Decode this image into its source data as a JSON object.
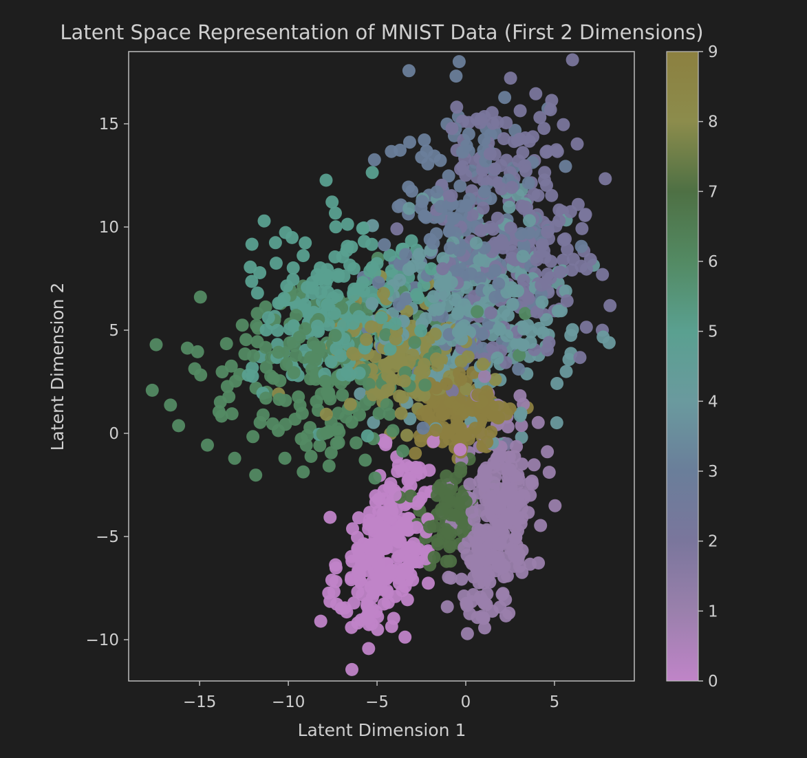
{
  "chart_data": {
    "type": "scatter",
    "title": "Latent Space Representation of MNIST Data (First 2 Dimensions)",
    "xlabel": "Latent Dimension 1",
    "ylabel": "Latent Dimension 2",
    "xlim": [
      -19,
      9.5
    ],
    "ylim": [
      -12,
      18.5
    ],
    "xticks": [
      -15,
      -10,
      -5,
      0,
      5
    ],
    "yticks": [
      -10,
      -5,
      0,
      5,
      10,
      15
    ],
    "grid": false,
    "colorbar": {
      "min": 0,
      "max": 9,
      "ticks": [
        0,
        1,
        2,
        3,
        4,
        5,
        6,
        7,
        8,
        9
      ],
      "colors": [
        "#c084c8",
        "#9a80ac",
        "#7a769c",
        "#6a7e9a",
        "#6a9a9e",
        "#5aa090",
        "#538a63",
        "#4e7044",
        "#8c8c4c",
        "#8c8040"
      ]
    },
    "clusters": [
      {
        "label": 0,
        "cx": -4.5,
        "cy": -5.5,
        "sx": 1.3,
        "sy": 2.2,
        "rho": 0.45,
        "n": 250
      },
      {
        "label": 1,
        "cx": 1.8,
        "cy": -4.0,
        "sx": 1.1,
        "sy": 2.6,
        "rho": 0.35,
        "n": 280
      },
      {
        "label": 2,
        "cx": 2.8,
        "cy": 10.0,
        "sx": 2.3,
        "sy": 3.2,
        "rho": 0.0,
        "n": 240
      },
      {
        "label": 3,
        "cx": 0.0,
        "cy": 9.5,
        "sx": 2.5,
        "sy": 3.3,
        "rho": 0.0,
        "n": 200
      },
      {
        "label": 4,
        "cx": 0.5,
        "cy": 6.0,
        "sx": 2.6,
        "sy": 2.4,
        "rho": 0.0,
        "n": 230
      },
      {
        "label": 5,
        "cx": -7.0,
        "cy": 6.0,
        "sx": 2.6,
        "sy": 2.0,
        "rho": 0.0,
        "n": 200
      },
      {
        "label": 6,
        "cx": -8.0,
        "cy": 3.0,
        "sx": 3.6,
        "sy": 2.0,
        "rho": 0.0,
        "n": 220
      },
      {
        "label": 7,
        "cx": -1.0,
        "cy": -4.0,
        "sx": 1.0,
        "sy": 1.3,
        "rho": 0.3,
        "n": 70
      },
      {
        "label": 8,
        "cx": -3.5,
        "cy": 3.5,
        "sx": 2.2,
        "sy": 1.6,
        "rho": 0.0,
        "n": 150
      },
      {
        "label": 9,
        "cx": -0.2,
        "cy": 0.8,
        "sx": 1.4,
        "sy": 1.0,
        "rho": 0.0,
        "n": 130
      }
    ]
  }
}
